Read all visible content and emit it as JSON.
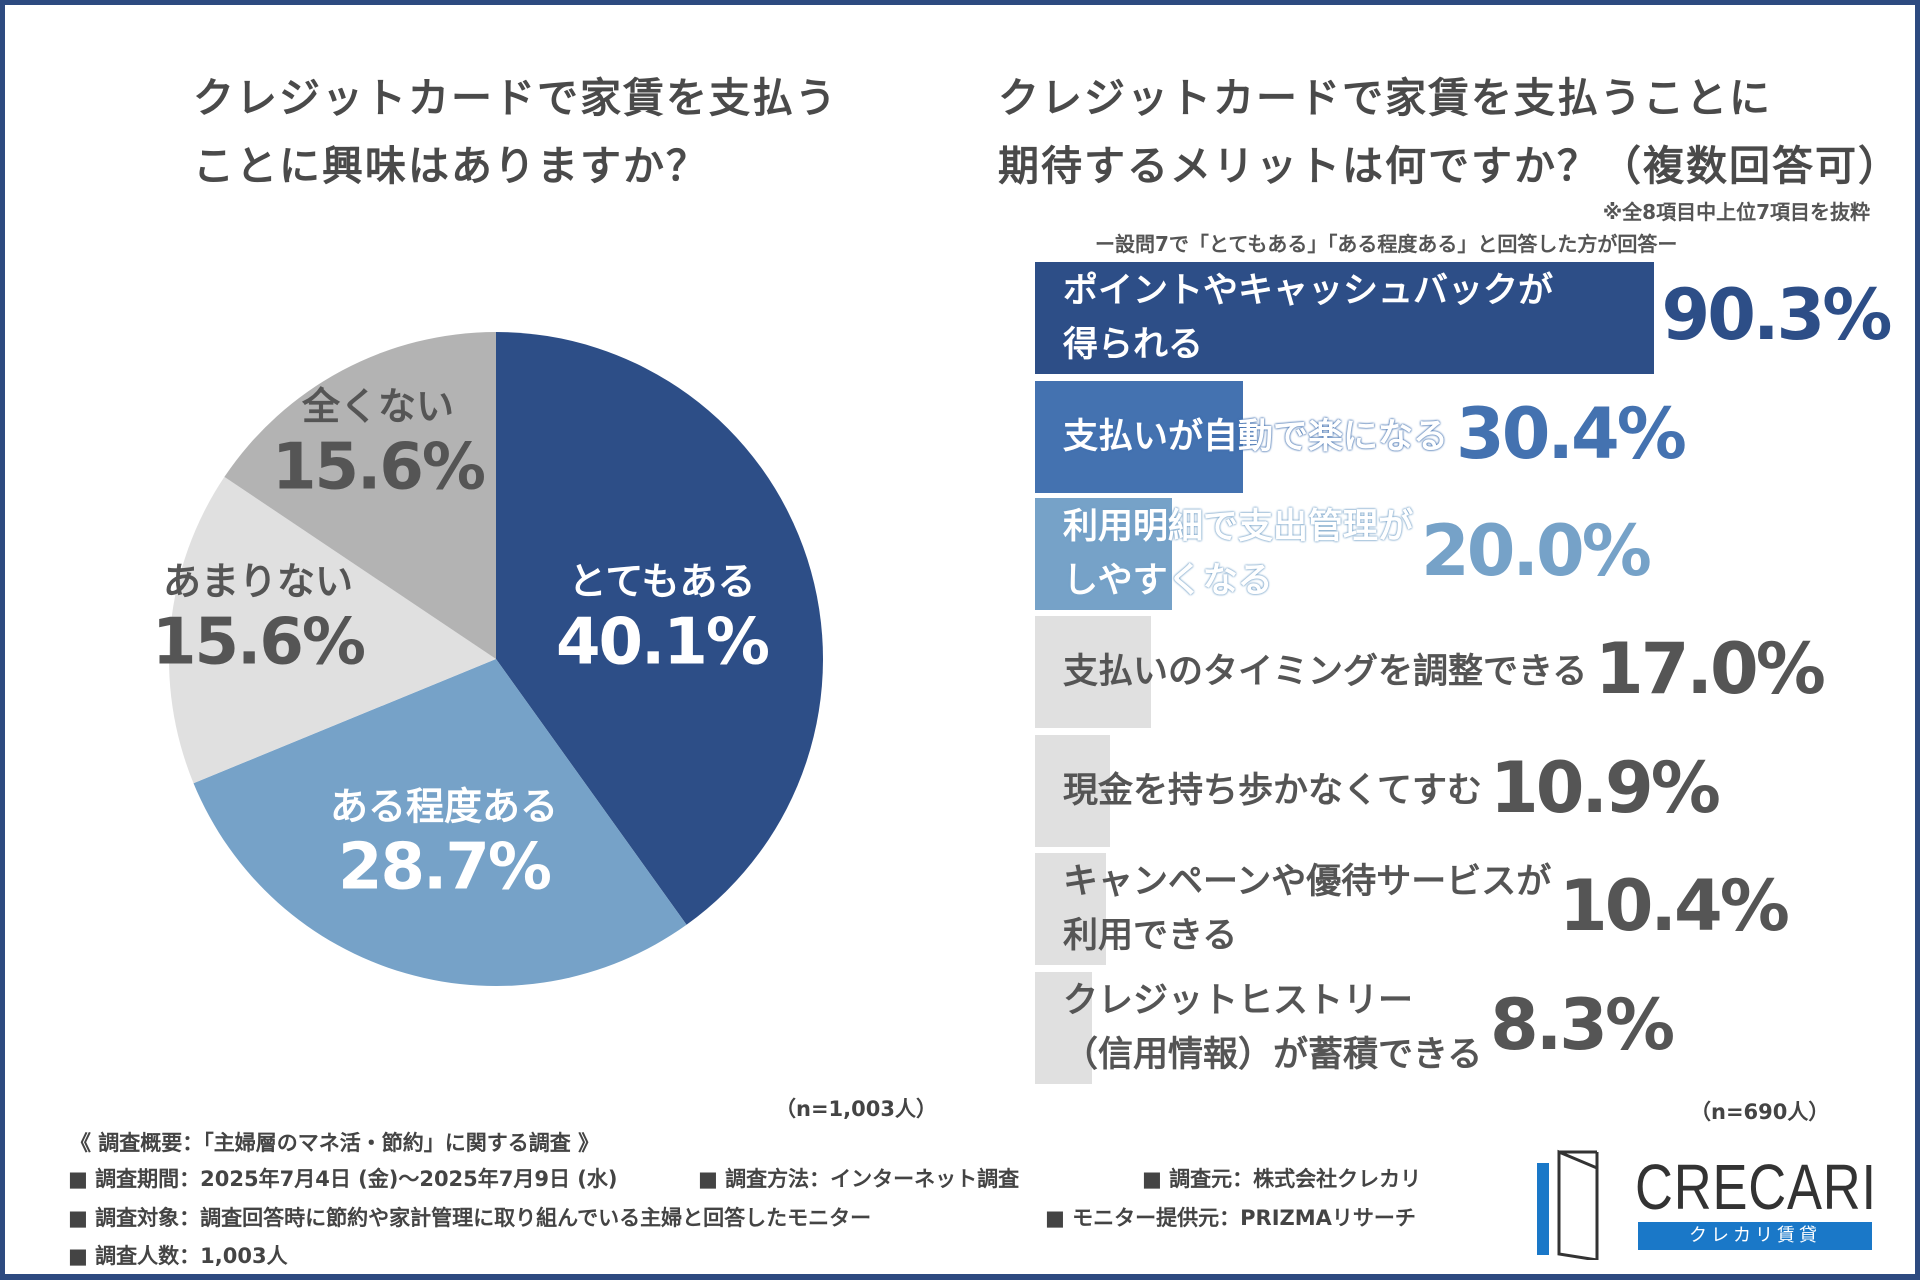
{
  "left_title": [
    "クレジットカードで家賃を支払う",
    "ことに興味はありますか？"
  ],
  "right_title": [
    "クレジットカードで家賃を支払うことに",
    "期待するメリットは何ですか？（複数回答可）"
  ],
  "right_note": "※全8項目中上位7項目を抜粋",
  "right_subnote": "ー設問7で「とてもある」「ある程度ある」と回答した方が回答ー",
  "left_n": "（n=1,003人）",
  "right_n": "（n=690人）",
  "chart_data": [
    {
      "type": "pie",
      "title": "クレジットカードで家賃を支払うことに興味はありますか？",
      "start": "top",
      "direction": "clockwise",
      "slices": [
        {
          "label": "とてもある",
          "value": 40.1,
          "display": "40.1%",
          "color": "#2d4e87",
          "text_color": "#ffffff"
        },
        {
          "label": "ある程度ある",
          "value": 28.7,
          "display": "28.7%",
          "color": "#76a2c8",
          "text_color": "#ffffff"
        },
        {
          "label": "あまりない",
          "value": 15.6,
          "display": "15.6%",
          "color": "#e0e0e0",
          "text_color": "#555555"
        },
        {
          "label": "全くない",
          "value": 15.6,
          "display": "15.6%",
          "color": "#b3b3b3",
          "text_color": "#555555"
        }
      ]
    },
    {
      "type": "bar",
      "orientation": "horizontal",
      "title": "クレジットカードで家賃を支払うことに期待するメリットは何ですか？（複数回答可）",
      "xlim": [
        0,
        100
      ],
      "bars": [
        {
          "label": [
            "ポイントやキャッシュバックが",
            "得られる"
          ],
          "value": 90.3,
          "display": "90.3%",
          "color": "#2d4e87",
          "label_color": "#ffffff",
          "value_color": "#2d4e87"
        },
        {
          "label": [
            "支払いが自動で楽になる"
          ],
          "value": 30.4,
          "display": "30.4%",
          "color": "#4472b0",
          "label_color": "#ffffff",
          "value_color": "#4472b0"
        },
        {
          "label": [
            "利用明細で支出管理が",
            "しやすくなる"
          ],
          "value": 20.0,
          "display": "20.0%",
          "color": "#76a2c8",
          "label_color": "#ffffff",
          "value_color": "#76a2c8"
        },
        {
          "label": [
            "支払いのタイミングを調整できる"
          ],
          "value": 17.0,
          "display": "17.0%",
          "color": "#e0e0e0",
          "label_color": "#555555",
          "value_color": "#555555"
        },
        {
          "label": [
            "現金を持ち歩かなくてすむ"
          ],
          "value": 10.9,
          "display": "10.9%",
          "color": "#e0e0e0",
          "label_color": "#555555",
          "value_color": "#555555"
        },
        {
          "label": [
            "キャンペーンや優待サービスが",
            "利用できる"
          ],
          "value": 10.4,
          "display": "10.4%",
          "color": "#e0e0e0",
          "label_color": "#555555",
          "value_color": "#555555"
        },
        {
          "label": [
            "クレジットヒストリー",
            "（信用情報）が蓄積できる"
          ],
          "value": 8.3,
          "display": "8.3%",
          "color": "#e0e0e0",
          "label_color": "#555555",
          "value_color": "#555555"
        }
      ]
    }
  ],
  "footer": {
    "heading": "《 調査概要：「主婦層のマネ活・節約」に関する調査 》",
    "period": "■ 調査期間：2025年7月4日 (金)〜2025年7月9日 (水)",
    "method": "■ 調査方法：インターネット調査",
    "source": "■ 調査元：株式会社クレカリ",
    "target": "■ 調査対象：調査回答時に節約や家計管理に取り組んでいる主婦と回答したモニター",
    "provider": "■ モニター提供元：PRIZMAリサーチ",
    "count": "■ 調査人数：1,003人"
  },
  "logo": {
    "name": "CRECARI",
    "sub": "クレカリ賃貸"
  }
}
